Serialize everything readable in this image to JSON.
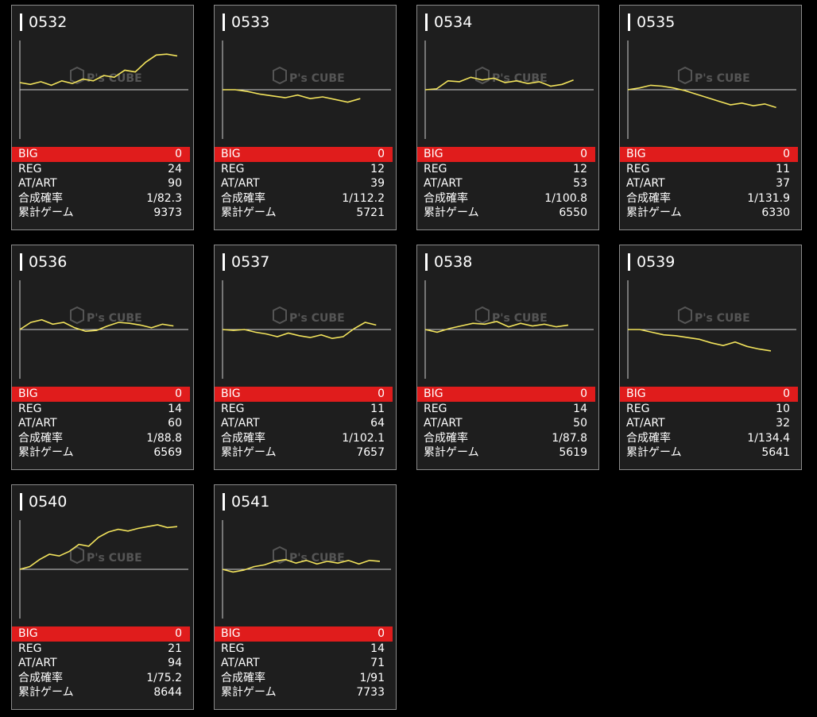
{
  "labels": {
    "big": "BIG",
    "reg": "REG",
    "at": "AT/ART",
    "rate": "合成確率",
    "games": "累計ゲーム"
  },
  "watermark": {
    "brand": "P's CUBE"
  },
  "colors": {
    "line": "#f2e35c",
    "big_bar": "#e01c1c",
    "card_bg": "#1e1e1e"
  },
  "machines": [
    {
      "id": "0532",
      "big": "0",
      "reg": "24",
      "at": "90",
      "rate": "1/82.3",
      "games": "9373",
      "trend": [
        0.16,
        0.12,
        0.18,
        0.1,
        0.2,
        0.14,
        0.24,
        0.2,
        0.32,
        0.28,
        0.44,
        0.4,
        0.62,
        0.78,
        0.8,
        0.76
      ]
    },
    {
      "id": "0533",
      "big": "0",
      "reg": "12",
      "at": "39",
      "rate": "1/112.2",
      "games": "5721",
      "trend": [
        0.0,
        0.0,
        -0.04,
        -0.1,
        -0.14,
        -0.18,
        -0.12,
        -0.2,
        -0.16,
        -0.22,
        -0.28,
        -0.2
      ]
    },
    {
      "id": "0534",
      "big": "0",
      "reg": "12",
      "at": "53",
      "rate": "1/100.8",
      "games": "6550",
      "trend": [
        0.0,
        0.02,
        0.2,
        0.18,
        0.28,
        0.22,
        0.26,
        0.16,
        0.2,
        0.14,
        0.18,
        0.08,
        0.12,
        0.22
      ]
    },
    {
      "id": "0535",
      "big": "0",
      "reg": "11",
      "at": "37",
      "rate": "1/131.9",
      "games": "6330",
      "trend": [
        0.0,
        0.04,
        0.1,
        0.08,
        0.04,
        -0.02,
        -0.1,
        -0.18,
        -0.26,
        -0.34,
        -0.3,
        -0.36,
        -0.32,
        -0.4
      ]
    },
    {
      "id": "0536",
      "big": "0",
      "reg": "14",
      "at": "60",
      "rate": "1/88.8",
      "games": "6569",
      "trend": [
        0.0,
        0.16,
        0.22,
        0.12,
        0.16,
        0.04,
        -0.04,
        -0.02,
        0.08,
        0.16,
        0.14,
        0.1,
        0.04,
        0.12,
        0.08
      ]
    },
    {
      "id": "0537",
      "big": "0",
      "reg": "11",
      "at": "64",
      "rate": "1/102.1",
      "games": "7657",
      "trend": [
        0.0,
        -0.02,
        0.0,
        -0.06,
        -0.1,
        -0.16,
        -0.08,
        -0.14,
        -0.18,
        -0.12,
        -0.2,
        -0.16,
        0.02,
        0.16,
        0.1
      ]
    },
    {
      "id": "0538",
      "big": "0",
      "reg": "14",
      "at": "50",
      "rate": "1/87.8",
      "games": "5619",
      "trend": [
        0.0,
        -0.06,
        0.02,
        0.08,
        0.14,
        0.12,
        0.18,
        0.06,
        0.14,
        0.08,
        0.12,
        0.06,
        0.1
      ]
    },
    {
      "id": "0539",
      "big": "0",
      "reg": "10",
      "at": "32",
      "rate": "1/134.4",
      "games": "5641",
      "trend": [
        0.0,
        0.0,
        -0.06,
        -0.12,
        -0.14,
        -0.18,
        -0.22,
        -0.3,
        -0.36,
        -0.28,
        -0.38,
        -0.44,
        -0.48
      ]
    },
    {
      "id": "0540",
      "big": "0",
      "reg": "21",
      "at": "94",
      "rate": "1/75.2",
      "games": "8644",
      "trend": [
        0.0,
        0.06,
        0.22,
        0.34,
        0.3,
        0.4,
        0.56,
        0.52,
        0.72,
        0.84,
        0.9,
        0.86,
        0.92,
        0.96,
        1.0,
        0.94,
        0.96
      ]
    },
    {
      "id": "0541",
      "big": "0",
      "reg": "14",
      "at": "71",
      "rate": "1/91",
      "games": "7733",
      "trend": [
        0.0,
        -0.06,
        -0.02,
        0.06,
        0.1,
        0.18,
        0.22,
        0.14,
        0.2,
        0.12,
        0.18,
        0.14,
        0.2,
        0.12,
        0.2,
        0.18
      ]
    }
  ]
}
